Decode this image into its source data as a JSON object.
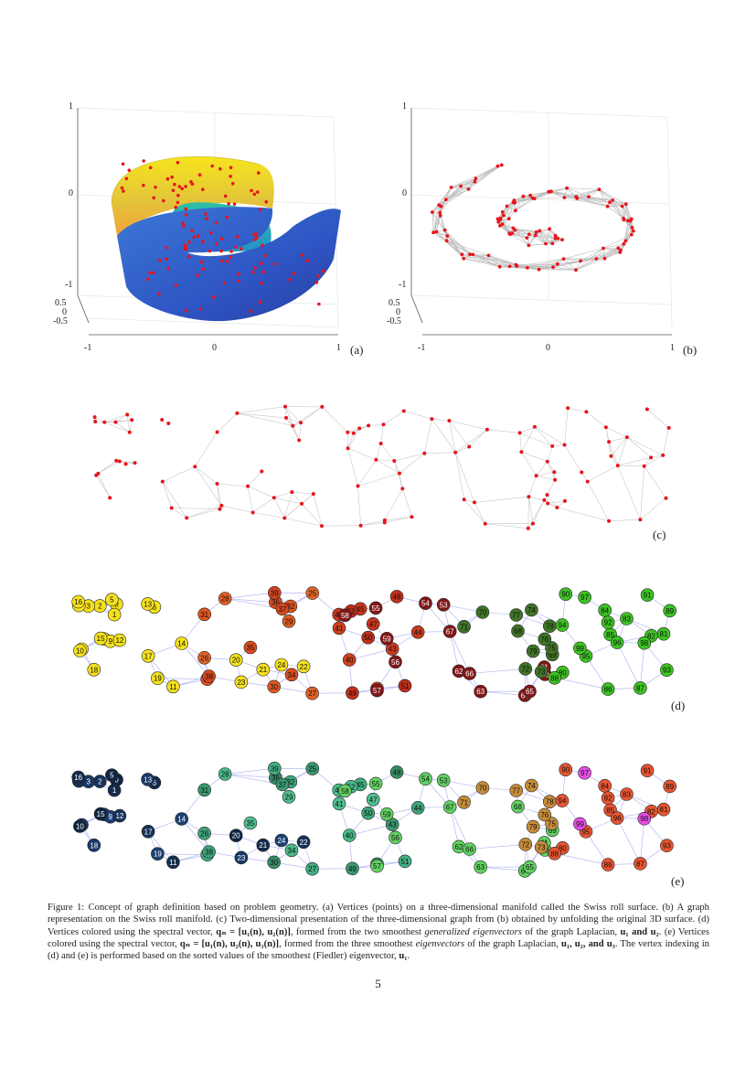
{
  "panels": {
    "a": {
      "label": "(a)",
      "ticks_vertical": [
        "1",
        "0",
        "-1"
      ],
      "ticks_depth": [
        "0.5",
        "0",
        "-0.5"
      ],
      "ticks_horizontal": [
        "-1",
        "0",
        "1"
      ]
    },
    "b": {
      "label": "(b)",
      "ticks_vertical": [
        "1",
        "0",
        "-1"
      ],
      "ticks_depth": [
        "0.5",
        "0",
        "-0.5"
      ],
      "ticks_horizontal": [
        "-1",
        "0",
        "1"
      ]
    },
    "c": {
      "label": "(c)"
    },
    "d": {
      "label": "(d)",
      "vertex_count": 100
    },
    "e": {
      "label": "(e)",
      "vertex_count": 100
    }
  },
  "caption": {
    "figure_label": "Figure 1:",
    "text_1": " Concept of graph definition based on problem geometry. (a) Vertices (points) on a three-dimensional manifold called the Swiss roll surface. (b) A graph representation on the Swiss roll manifold. (c) Two-dimensional presentation of the three-dimensional graph from (b) obtained by unfolding the original 3D surface. (d) Vertices colored using the spectral vector, ",
    "math_d": "qₙ = [u₁(n), u₂(n)]",
    "text_2": ", formed from the two smoothest ",
    "italic_1": "generalized eigenvectors",
    "text_3": " of the graph Laplacian, ",
    "math_u1u2": "u₁ and u₂",
    "text_4": ". (e) Vertices colored using the spectral vector, ",
    "math_e": "qₙ = [u₁(n), u₂(n), u₃(n)]",
    "text_5": ", formed from the three smoothest ",
    "italic_2": "eigenvectors",
    "text_6": " of the graph Laplacian, ",
    "math_u123": "u₁, u₂, and u₃",
    "text_7": ". The vertex indexing in (d) and (e) is performed based on the sorted values of the smoothest (Fiedler) eigenvector, ",
    "math_u1": "u₁",
    "text_8": "."
  },
  "page_number": "5",
  "colors": {
    "point": "#e8141c",
    "edge": "#c8c8c8",
    "graph_edge": "#a9aef0"
  }
}
